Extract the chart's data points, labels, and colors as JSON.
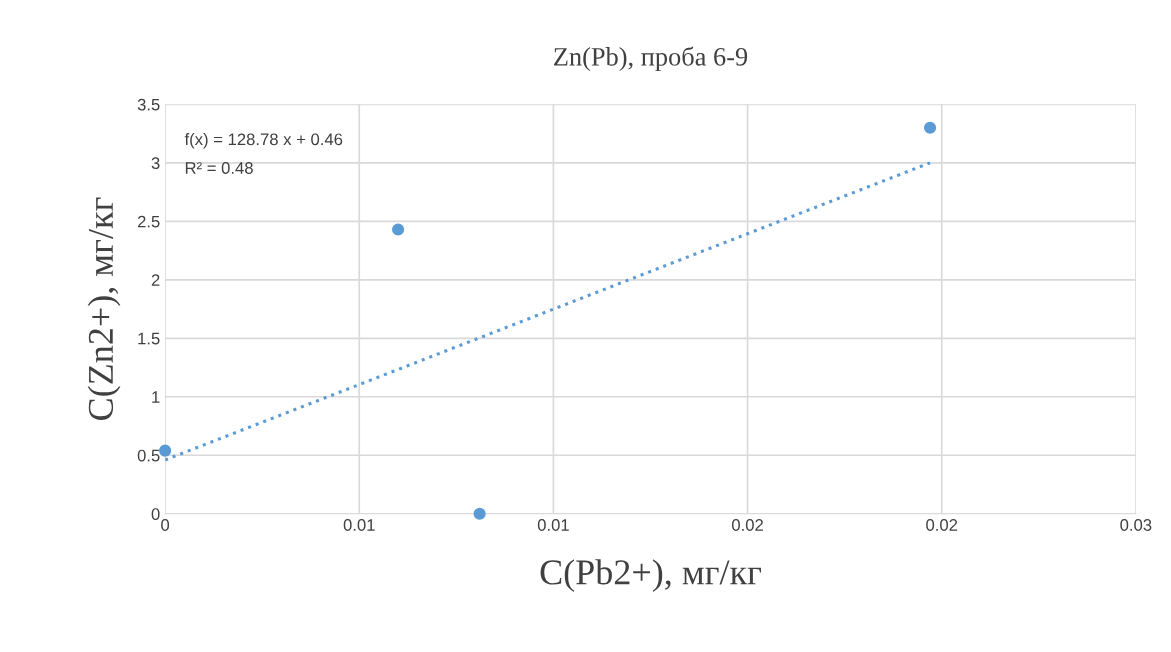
{
  "chart_data": {
    "type": "scatter",
    "title": "Zn(Pb), проба 6-9",
    "xlabel": "C(Pb2+), мг/кг",
    "ylabel": "C(Zn2+), мг/кг",
    "series": [
      {
        "color": "#5b9bd5",
        "marker": "circle",
        "x": [
          0,
          0.006,
          0.0081,
          0.0197
        ],
        "values": [
          0.54,
          2.43,
          0,
          3.3
        ]
      },
      {
        "type": "line",
        "color": "#5b9bd5",
        "line_style": "dotted",
        "marker": "none",
        "x": [
          0,
          0.0197
        ],
        "values": [
          0.46,
          3.0
        ]
      }
    ],
    "annotations": [
      "f(x) = 128.78 x + 0.46",
      "R² = 0.48"
    ],
    "xlim": [
      0,
      0.025
    ],
    "xticks": [
      0,
      {
        "value": 0.005,
        "label": "0.01"
      },
      0.01,
      {
        "value": 0.015,
        "label": "0.02"
      },
      0.02,
      {
        "value": 0.025,
        "label": "0.03"
      }
    ],
    "ylim": [
      0,
      3.5
    ],
    "yticks": [
      0,
      0.5,
      1,
      1.5,
      2,
      2.5,
      3,
      3.5
    ],
    "grid": true
  }
}
